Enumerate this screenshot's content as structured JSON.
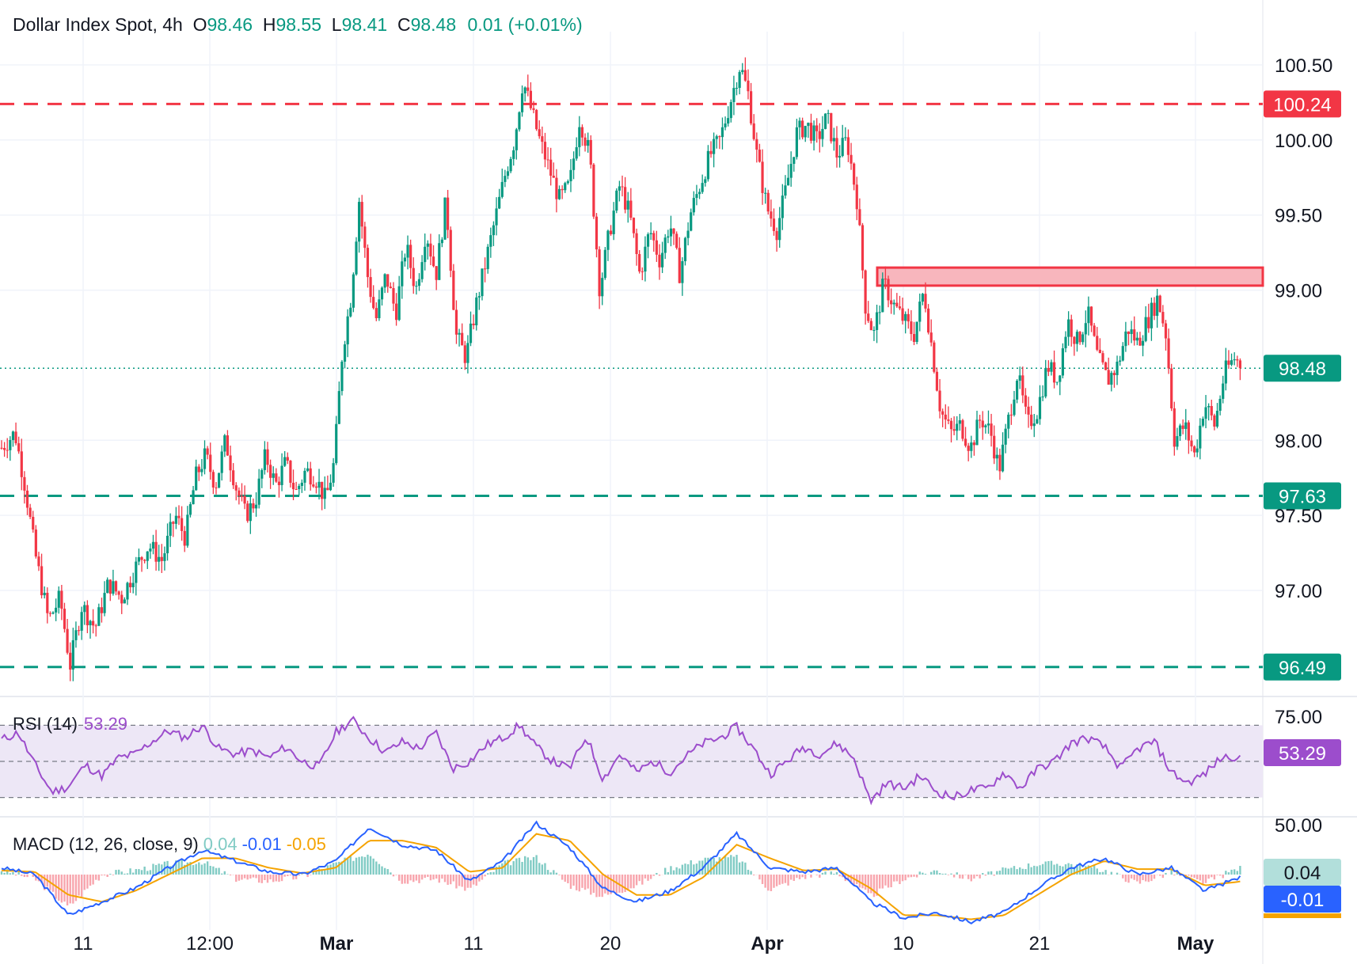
{
  "chart_data": {
    "type": "candlestick",
    "symbol": "Dollar Index Spot",
    "timeframe": "4h",
    "ohlc": {
      "o_label": "O",
      "o": "98.46",
      "h_label": "H",
      "h": "98.55",
      "l_label": "L",
      "l": "98.41",
      "c_label": "C",
      "c": "98.48",
      "change": "0.01 (+0.01%)"
    },
    "price_axis_ticks": [
      "100.50",
      "100.00",
      "99.50",
      "99.00",
      "98.00",
      "97.50",
      "97.00"
    ],
    "price_axis_values": [
      100.5,
      100.0,
      99.5,
      99.0,
      98.0,
      97.5,
      97.0
    ],
    "time_axis_ticks": [
      "11",
      "12:00",
      "Mar",
      "11",
      "20",
      "Apr",
      "10",
      "21",
      "May"
    ],
    "ylim": [
      96.3,
      100.8
    ],
    "horizontal_levels": [
      {
        "value": 100.24,
        "label": "100.24",
        "style": "dashed",
        "color": "#f23645"
      },
      {
        "value": 97.63,
        "label": "97.63",
        "style": "dashed",
        "color": "#089981"
      },
      {
        "value": 96.49,
        "label": "96.49",
        "style": "dashed",
        "color": "#089981"
      }
    ],
    "resistance_zone": {
      "from": 99.03,
      "to": 99.15,
      "color": "#f23645"
    },
    "last_price": {
      "value": 98.48,
      "label": "98.48"
    },
    "close_path": [
      {
        "t": 0,
        "p": 97.95
      },
      {
        "t": 0.4,
        "p": 98.05
      },
      {
        "t": 0.7,
        "p": 97.7
      },
      {
        "t": 1.0,
        "p": 97.25
      },
      {
        "t": 1.4,
        "p": 96.8
      },
      {
        "t": 1.75,
        "p": 96.95
      },
      {
        "t": 2.05,
        "p": 96.5
      },
      {
        "t": 2.4,
        "p": 96.9
      },
      {
        "t": 2.8,
        "p": 96.75
      },
      {
        "t": 3.2,
        "p": 97.05
      },
      {
        "t": 3.6,
        "p": 96.95
      },
      {
        "t": 4.0,
        "p": 97.15
      },
      {
        "t": 4.4,
        "p": 97.3
      },
      {
        "t": 4.8,
        "p": 97.2
      },
      {
        "t": 5.2,
        "p": 97.5
      },
      {
        "t": 5.5,
        "p": 97.35
      },
      {
        "t": 5.8,
        "p": 97.75
      },
      {
        "t": 6.1,
        "p": 97.9
      },
      {
        "t": 6.4,
        "p": 97.7
      },
      {
        "t": 6.7,
        "p": 98.0
      },
      {
        "t": 7.0,
        "p": 97.7
      },
      {
        "t": 7.3,
        "p": 97.5
      },
      {
        "t": 7.6,
        "p": 97.6
      },
      {
        "t": 7.9,
        "p": 97.9
      },
      {
        "t": 8.2,
        "p": 97.7
      },
      {
        "t": 8.5,
        "p": 97.85
      },
      {
        "t": 8.8,
        "p": 97.65
      },
      {
        "t": 9.1,
        "p": 97.8
      },
      {
        "t": 9.4,
        "p": 97.75
      },
      {
        "t": 9.7,
        "p": 97.6
      },
      {
        "t": 9.95,
        "p": 97.85
      },
      {
        "t": 10.2,
        "p": 98.6
      },
      {
        "t": 10.45,
        "p": 98.95
      },
      {
        "t": 10.7,
        "p": 99.6
      },
      {
        "t": 10.95,
        "p": 99.1
      },
      {
        "t": 11.2,
        "p": 98.8
      },
      {
        "t": 11.5,
        "p": 99.1
      },
      {
        "t": 11.8,
        "p": 98.85
      },
      {
        "t": 12.1,
        "p": 99.3
      },
      {
        "t": 12.4,
        "p": 99.0
      },
      {
        "t": 12.7,
        "p": 99.4
      },
      {
        "t": 13.0,
        "p": 99.1
      },
      {
        "t": 13.3,
        "p": 99.6
      },
      {
        "t": 13.6,
        "p": 98.7
      },
      {
        "t": 13.9,
        "p": 98.55
      },
      {
        "t": 14.2,
        "p": 98.9
      },
      {
        "t": 14.5,
        "p": 99.2
      },
      {
        "t": 14.8,
        "p": 99.5
      },
      {
        "t": 15.1,
        "p": 99.8
      },
      {
        "t": 15.35,
        "p": 100.0
      },
      {
        "t": 15.6,
        "p": 100.4
      },
      {
        "t": 15.85,
        "p": 100.2
      },
      {
        "t": 16.1,
        "p": 100.0
      },
      {
        "t": 16.4,
        "p": 99.8
      },
      {
        "t": 16.7,
        "p": 99.6
      },
      {
        "t": 17.0,
        "p": 99.7
      },
      {
        "t": 17.3,
        "p": 100.15
      },
      {
        "t": 17.6,
        "p": 99.9
      },
      {
        "t": 17.9,
        "p": 99.0
      },
      {
        "t": 18.2,
        "p": 99.4
      },
      {
        "t": 18.5,
        "p": 99.7
      },
      {
        "t": 18.8,
        "p": 99.5
      },
      {
        "t": 19.1,
        "p": 99.1
      },
      {
        "t": 19.4,
        "p": 99.4
      },
      {
        "t": 19.7,
        "p": 99.2
      },
      {
        "t": 20.0,
        "p": 99.45
      },
      {
        "t": 20.3,
        "p": 99.1
      },
      {
        "t": 20.6,
        "p": 99.5
      },
      {
        "t": 20.9,
        "p": 99.7
      },
      {
        "t": 21.2,
        "p": 99.9
      },
      {
        "t": 21.5,
        "p": 100.0
      },
      {
        "t": 21.8,
        "p": 100.25
      },
      {
        "t": 22.1,
        "p": 100.5
      },
      {
        "t": 22.35,
        "p": 100.3
      },
      {
        "t": 22.6,
        "p": 99.9
      },
      {
        "t": 22.9,
        "p": 99.55
      },
      {
        "t": 23.2,
        "p": 99.4
      },
      {
        "t": 23.5,
        "p": 99.7
      },
      {
        "t": 23.8,
        "p": 100.05
      },
      {
        "t": 24.1,
        "p": 100.1
      },
      {
        "t": 24.4,
        "p": 100.0
      },
      {
        "t": 24.7,
        "p": 100.15
      },
      {
        "t": 25.0,
        "p": 99.9
      },
      {
        "t": 25.3,
        "p": 100.0
      },
      {
        "t": 25.6,
        "p": 99.6
      },
      {
        "t": 25.85,
        "p": 98.9
      },
      {
        "t": 26.1,
        "p": 98.7
      },
      {
        "t": 26.4,
        "p": 99.05
      },
      {
        "t": 26.7,
        "p": 98.9
      },
      {
        "t": 27.0,
        "p": 98.8
      },
      {
        "t": 27.3,
        "p": 98.7
      },
      {
        "t": 27.6,
        "p": 99.0
      },
      {
        "t": 27.85,
        "p": 98.6
      },
      {
        "t": 28.1,
        "p": 98.2
      },
      {
        "t": 28.4,
        "p": 98.05
      },
      {
        "t": 28.7,
        "p": 98.1
      },
      {
        "t": 29.0,
        "p": 97.95
      },
      {
        "t": 29.3,
        "p": 98.15
      },
      {
        "t": 29.6,
        "p": 98.05
      },
      {
        "t": 29.85,
        "p": 97.8
      },
      {
        "t": 30.1,
        "p": 98.1
      },
      {
        "t": 30.4,
        "p": 98.45
      },
      {
        "t": 30.7,
        "p": 98.1
      },
      {
        "t": 31.0,
        "p": 98.2
      },
      {
        "t": 31.3,
        "p": 98.5
      },
      {
        "t": 31.6,
        "p": 98.4
      },
      {
        "t": 31.9,
        "p": 98.8
      },
      {
        "t": 32.2,
        "p": 98.65
      },
      {
        "t": 32.5,
        "p": 98.85
      },
      {
        "t": 32.8,
        "p": 98.55
      },
      {
        "t": 33.1,
        "p": 98.4
      },
      {
        "t": 33.4,
        "p": 98.5
      },
      {
        "t": 33.7,
        "p": 98.75
      },
      {
        "t": 34.0,
        "p": 98.65
      },
      {
        "t": 34.3,
        "p": 98.8
      },
      {
        "t": 34.6,
        "p": 98.95
      },
      {
        "t": 34.85,
        "p": 98.7
      },
      {
        "t": 35.1,
        "p": 98.0
      },
      {
        "t": 35.4,
        "p": 98.1
      },
      {
        "t": 35.7,
        "p": 97.9
      },
      {
        "t": 36.0,
        "p": 98.25
      },
      {
        "t": 36.3,
        "p": 98.1
      },
      {
        "t": 36.6,
        "p": 98.45
      },
      {
        "t": 36.9,
        "p": 98.55
      },
      {
        "t": 37.15,
        "p": 98.48
      }
    ],
    "rsi": {
      "label": "RSI (14)",
      "value": "53.29",
      "value_num": 53.29,
      "axis_ticks": [
        "75.00",
        "50.00"
      ],
      "band": [
        30,
        70
      ],
      "path": [
        {
          "t": 0,
          "p": 62
        },
        {
          "t": 0.5,
          "p": 66
        },
        {
          "t": 1.0,
          "p": 48
        },
        {
          "t": 1.5,
          "p": 33
        },
        {
          "t": 2.0,
          "p": 36
        },
        {
          "t": 2.5,
          "p": 48
        },
        {
          "t": 3.0,
          "p": 42
        },
        {
          "t": 3.5,
          "p": 52
        },
        {
          "t": 4.0,
          "p": 54
        },
        {
          "t": 4.5,
          "p": 61
        },
        {
          "t": 5.0,
          "p": 67
        },
        {
          "t": 5.5,
          "p": 63
        },
        {
          "t": 6.0,
          "p": 70
        },
        {
          "t": 6.5,
          "p": 57
        },
        {
          "t": 7.0,
          "p": 54
        },
        {
          "t": 7.5,
          "p": 56
        },
        {
          "t": 8.0,
          "p": 52
        },
        {
          "t": 8.5,
          "p": 58
        },
        {
          "t": 9.0,
          "p": 50
        },
        {
          "t": 9.5,
          "p": 47
        },
        {
          "t": 10.0,
          "p": 66
        },
        {
          "t": 10.5,
          "p": 73
        },
        {
          "t": 11.0,
          "p": 63
        },
        {
          "t": 11.5,
          "p": 55
        },
        {
          "t": 12.0,
          "p": 61
        },
        {
          "t": 12.5,
          "p": 57
        },
        {
          "t": 13.0,
          "p": 66
        },
        {
          "t": 13.5,
          "p": 46
        },
        {
          "t": 14.0,
          "p": 50
        },
        {
          "t": 14.5,
          "p": 59
        },
        {
          "t": 15.0,
          "p": 63
        },
        {
          "t": 15.5,
          "p": 70
        },
        {
          "t": 16.0,
          "p": 58
        },
        {
          "t": 16.5,
          "p": 50
        },
        {
          "t": 17.0,
          "p": 46
        },
        {
          "t": 17.5,
          "p": 64
        },
        {
          "t": 18.0,
          "p": 40
        },
        {
          "t": 18.5,
          "p": 54
        },
        {
          "t": 19.0,
          "p": 44
        },
        {
          "t": 19.5,
          "p": 50
        },
        {
          "t": 20.0,
          "p": 44
        },
        {
          "t": 20.5,
          "p": 53
        },
        {
          "t": 21.0,
          "p": 60
        },
        {
          "t": 21.5,
          "p": 63
        },
        {
          "t": 22.0,
          "p": 69
        },
        {
          "t": 22.5,
          "p": 57
        },
        {
          "t": 23.0,
          "p": 43
        },
        {
          "t": 23.5,
          "p": 50
        },
        {
          "t": 24.0,
          "p": 58
        },
        {
          "t": 24.5,
          "p": 54
        },
        {
          "t": 25.0,
          "p": 60
        },
        {
          "t": 25.5,
          "p": 52
        },
        {
          "t": 26.0,
          "p": 28
        },
        {
          "t": 26.5,
          "p": 38
        },
        {
          "t": 27.0,
          "p": 35
        },
        {
          "t": 27.5,
          "p": 42
        },
        {
          "t": 28.0,
          "p": 33
        },
        {
          "t": 28.5,
          "p": 30
        },
        {
          "t": 29.0,
          "p": 34
        },
        {
          "t": 29.5,
          "p": 35
        },
        {
          "t": 30.0,
          "p": 44
        },
        {
          "t": 30.5,
          "p": 35
        },
        {
          "t": 31.0,
          "p": 46
        },
        {
          "t": 31.5,
          "p": 50
        },
        {
          "t": 32.0,
          "p": 60
        },
        {
          "t": 32.5,
          "p": 63
        },
        {
          "t": 33.0,
          "p": 58
        },
        {
          "t": 33.5,
          "p": 46
        },
        {
          "t": 34.0,
          "p": 57
        },
        {
          "t": 34.5,
          "p": 61
        },
        {
          "t": 35.0,
          "p": 44
        },
        {
          "t": 35.5,
          "p": 38
        },
        {
          "t": 36.0,
          "p": 43
        },
        {
          "t": 36.5,
          "p": 52
        },
        {
          "t": 37.15,
          "p": 53.29
        }
      ]
    },
    "macd": {
      "label": "MACD (12, 26, close, 9)",
      "histogram": "0.04",
      "histogram_num": 0.04,
      "macd": "-0.01",
      "macd_num": -0.01,
      "signal": "-0.05",
      "signal_num": -0.05,
      "ylim": [
        -0.45,
        0.45
      ],
      "macd_path": [
        {
          "t": 0,
          "p": 0.05
        },
        {
          "t": 1.0,
          "p": 0.0
        },
        {
          "t": 2.0,
          "p": -0.3
        },
        {
          "t": 3.0,
          "p": -0.2
        },
        {
          "t": 4.0,
          "p": -0.1
        },
        {
          "t": 5.0,
          "p": 0.05
        },
        {
          "t": 6.0,
          "p": 0.18
        },
        {
          "t": 7.0,
          "p": 0.1
        },
        {
          "t": 8.0,
          "p": 0.02
        },
        {
          "t": 9.0,
          "p": 0.0
        },
        {
          "t": 10.0,
          "p": 0.1
        },
        {
          "t": 11.0,
          "p": 0.35
        },
        {
          "t": 12.0,
          "p": 0.22
        },
        {
          "t": 13.0,
          "p": 0.18
        },
        {
          "t": 14.0,
          "p": -0.05
        },
        {
          "t": 15.0,
          "p": 0.1
        },
        {
          "t": 16.0,
          "p": 0.38
        },
        {
          "t": 17.0,
          "p": 0.2
        },
        {
          "t": 18.0,
          "p": -0.1
        },
        {
          "t": 19.0,
          "p": -0.2
        },
        {
          "t": 20.0,
          "p": -0.12
        },
        {
          "t": 21.0,
          "p": 0.05
        },
        {
          "t": 22.0,
          "p": 0.3
        },
        {
          "t": 23.0,
          "p": 0.05
        },
        {
          "t": 24.0,
          "p": 0.02
        },
        {
          "t": 25.0,
          "p": 0.05
        },
        {
          "t": 26.0,
          "p": -0.2
        },
        {
          "t": 27.0,
          "p": -0.32
        },
        {
          "t": 28.0,
          "p": -0.28
        },
        {
          "t": 29.0,
          "p": -0.35
        },
        {
          "t": 30.0,
          "p": -0.28
        },
        {
          "t": 31.0,
          "p": -0.1
        },
        {
          "t": 32.0,
          "p": 0.05
        },
        {
          "t": 33.0,
          "p": 0.12
        },
        {
          "t": 34.0,
          "p": 0.0
        },
        {
          "t": 35.0,
          "p": 0.05
        },
        {
          "t": 36.0,
          "p": -0.12
        },
        {
          "t": 37.15,
          "p": -0.01
        }
      ],
      "signal_path": [
        {
          "t": 0,
          "p": 0.03
        },
        {
          "t": 1.0,
          "p": 0.02
        },
        {
          "t": 2.0,
          "p": -0.15
        },
        {
          "t": 3.0,
          "p": -0.2
        },
        {
          "t": 4.0,
          "p": -0.12
        },
        {
          "t": 5.0,
          "p": 0.0
        },
        {
          "t": 6.0,
          "p": 0.12
        },
        {
          "t": 7.0,
          "p": 0.12
        },
        {
          "t": 8.0,
          "p": 0.05
        },
        {
          "t": 9.0,
          "p": 0.01
        },
        {
          "t": 10.0,
          "p": 0.05
        },
        {
          "t": 11.0,
          "p": 0.25
        },
        {
          "t": 12.0,
          "p": 0.25
        },
        {
          "t": 13.0,
          "p": 0.2
        },
        {
          "t": 14.0,
          "p": 0.02
        },
        {
          "t": 15.0,
          "p": 0.05
        },
        {
          "t": 16.0,
          "p": 0.3
        },
        {
          "t": 17.0,
          "p": 0.25
        },
        {
          "t": 18.0,
          "p": 0.0
        },
        {
          "t": 19.0,
          "p": -0.15
        },
        {
          "t": 20.0,
          "p": -0.15
        },
        {
          "t": 21.0,
          "p": -0.02
        },
        {
          "t": 22.0,
          "p": 0.22
        },
        {
          "t": 23.0,
          "p": 0.12
        },
        {
          "t": 24.0,
          "p": 0.03
        },
        {
          "t": 25.0,
          "p": 0.04
        },
        {
          "t": 26.0,
          "p": -0.1
        },
        {
          "t": 27.0,
          "p": -0.3
        },
        {
          "t": 28.0,
          "p": -0.3
        },
        {
          "t": 29.0,
          "p": -0.33
        },
        {
          "t": 30.0,
          "p": -0.3
        },
        {
          "t": 31.0,
          "p": -0.15
        },
        {
          "t": 32.0,
          "p": 0.0
        },
        {
          "t": 33.0,
          "p": 0.1
        },
        {
          "t": 34.0,
          "p": 0.04
        },
        {
          "t": 35.0,
          "p": 0.04
        },
        {
          "t": 36.0,
          "p": -0.08
        },
        {
          "t": 37.15,
          "p": -0.05
        }
      ]
    },
    "colors": {
      "up": "#089981",
      "down": "#f23645",
      "rsi_line": "#9c4dcc",
      "rsi_band": "#ede7f6",
      "macd_line": "#2962ff",
      "signal_line": "#f5a300",
      "hist_pos": "#80cbc4",
      "hist_neg": "#f8a5ad",
      "grid": "#f0f3fa",
      "axis_text": "#131722"
    }
  }
}
